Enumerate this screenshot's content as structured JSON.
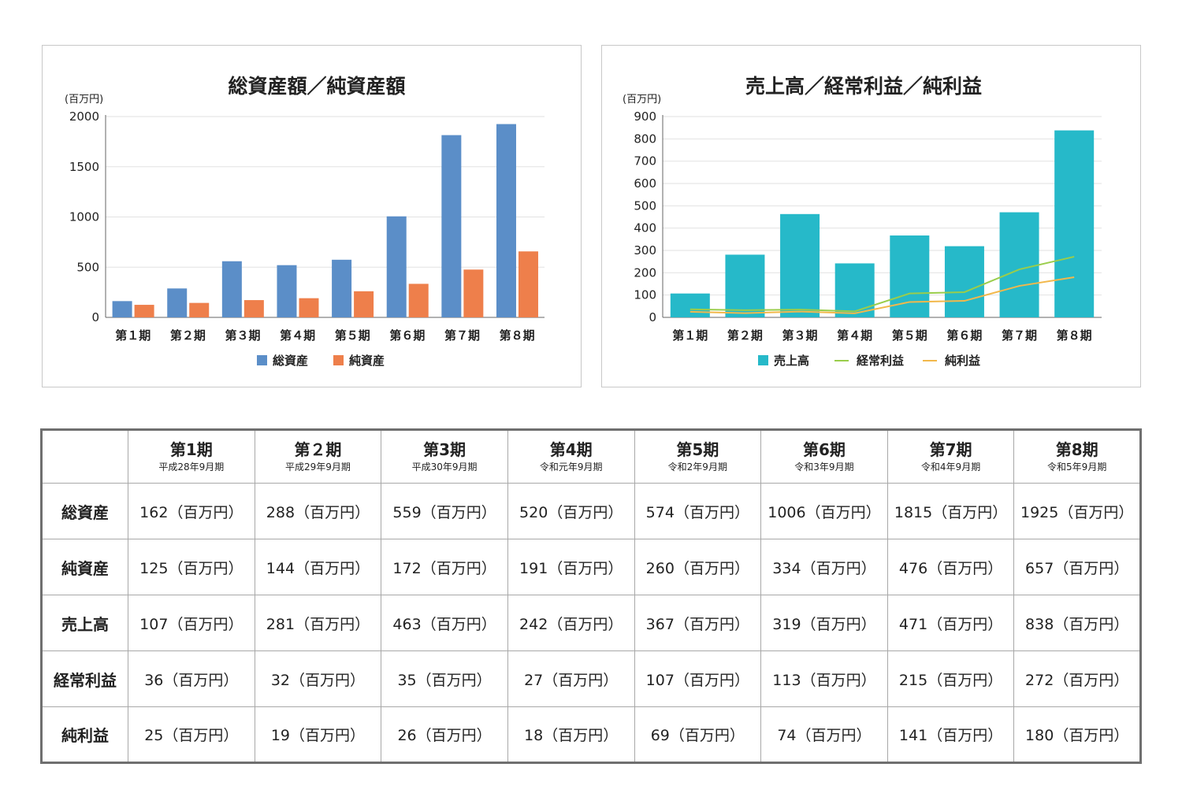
{
  "chart_data": [
    {
      "type": "bar",
      "title": "総資産額／純資産額",
      "unit": "(百万円)",
      "categories": [
        "第１期",
        "第２期",
        "第３期",
        "第４期",
        "第５期",
        "第６期",
        "第７期",
        "第８期"
      ],
      "series": [
        {
          "name": "総資産",
          "color": "#5b8ec8",
          "values": [
            162,
            288,
            559,
            520,
            574,
            1006,
            1815,
            1925
          ]
        },
        {
          "name": "純資産",
          "color": "#ee7f4b",
          "values": [
            125,
            144,
            172,
            191,
            260,
            334,
            476,
            657
          ]
        }
      ],
      "ylim": [
        0,
        2000
      ],
      "yticks": [
        0,
        500,
        1000,
        1500,
        2000
      ],
      "grid": true,
      "legend": "bottom"
    },
    {
      "type": "bar",
      "title": "売上高／経常利益／純利益",
      "unit": "(百万円)",
      "categories": [
        "第１期",
        "第２期",
        "第３期",
        "第４期",
        "第５期",
        "第６期",
        "第７期",
        "第８期"
      ],
      "series": [
        {
          "name": "売上高",
          "type": "bar",
          "color": "#26b9c9",
          "values": [
            107,
            281,
            463,
            242,
            367,
            319,
            471,
            838
          ]
        },
        {
          "name": "経常利益",
          "type": "line",
          "color": "#9acd4b",
          "values": [
            36,
            32,
            35,
            27,
            107,
            113,
            215,
            272
          ]
        },
        {
          "name": "純利益",
          "type": "line",
          "color": "#f2b84b",
          "values": [
            25,
            19,
            26,
            18,
            69,
            74,
            141,
            180
          ]
        }
      ],
      "ylim": [
        0,
        900
      ],
      "yticks": [
        0,
        100,
        200,
        300,
        400,
        500,
        600,
        700,
        800,
        900
      ],
      "grid": true,
      "legend": "bottom"
    }
  ],
  "table": {
    "periods": [
      {
        "name": "第1期",
        "date": "平成28年9月期"
      },
      {
        "name": "第２期",
        "date": "平成29年9月期"
      },
      {
        "name": "第3期",
        "date": "平成30年9月期"
      },
      {
        "name": "第4期",
        "date": "令和元年9月期"
      },
      {
        "name": "第5期",
        "date": "令和2年9月期"
      },
      {
        "name": "第6期",
        "date": "令和3年9月期"
      },
      {
        "name": "第7期",
        "date": "令和4年9月期"
      },
      {
        "name": "第8期",
        "date": "令和5年9月期"
      }
    ],
    "unit_suffix": "（百万円）",
    "rows": [
      {
        "label": "総資産",
        "values": [
          "162",
          "288",
          "559",
          "520",
          "574",
          "1006",
          "1815",
          "1925"
        ]
      },
      {
        "label": "純資産",
        "values": [
          "125",
          "144",
          "172",
          "191",
          "260",
          "334",
          "476",
          "657"
        ]
      },
      {
        "label": "売上高",
        "values": [
          "107",
          "281",
          "463",
          "242",
          "367",
          "319",
          "471",
          "838"
        ]
      },
      {
        "label": "経常利益",
        "values": [
          "36",
          "32",
          "35",
          "27",
          "107",
          "113",
          "215",
          "272"
        ]
      },
      {
        "label": "純利益",
        "values": [
          "25",
          "19",
          "26",
          "18",
          "69",
          "74",
          "141",
          "180"
        ]
      }
    ]
  }
}
